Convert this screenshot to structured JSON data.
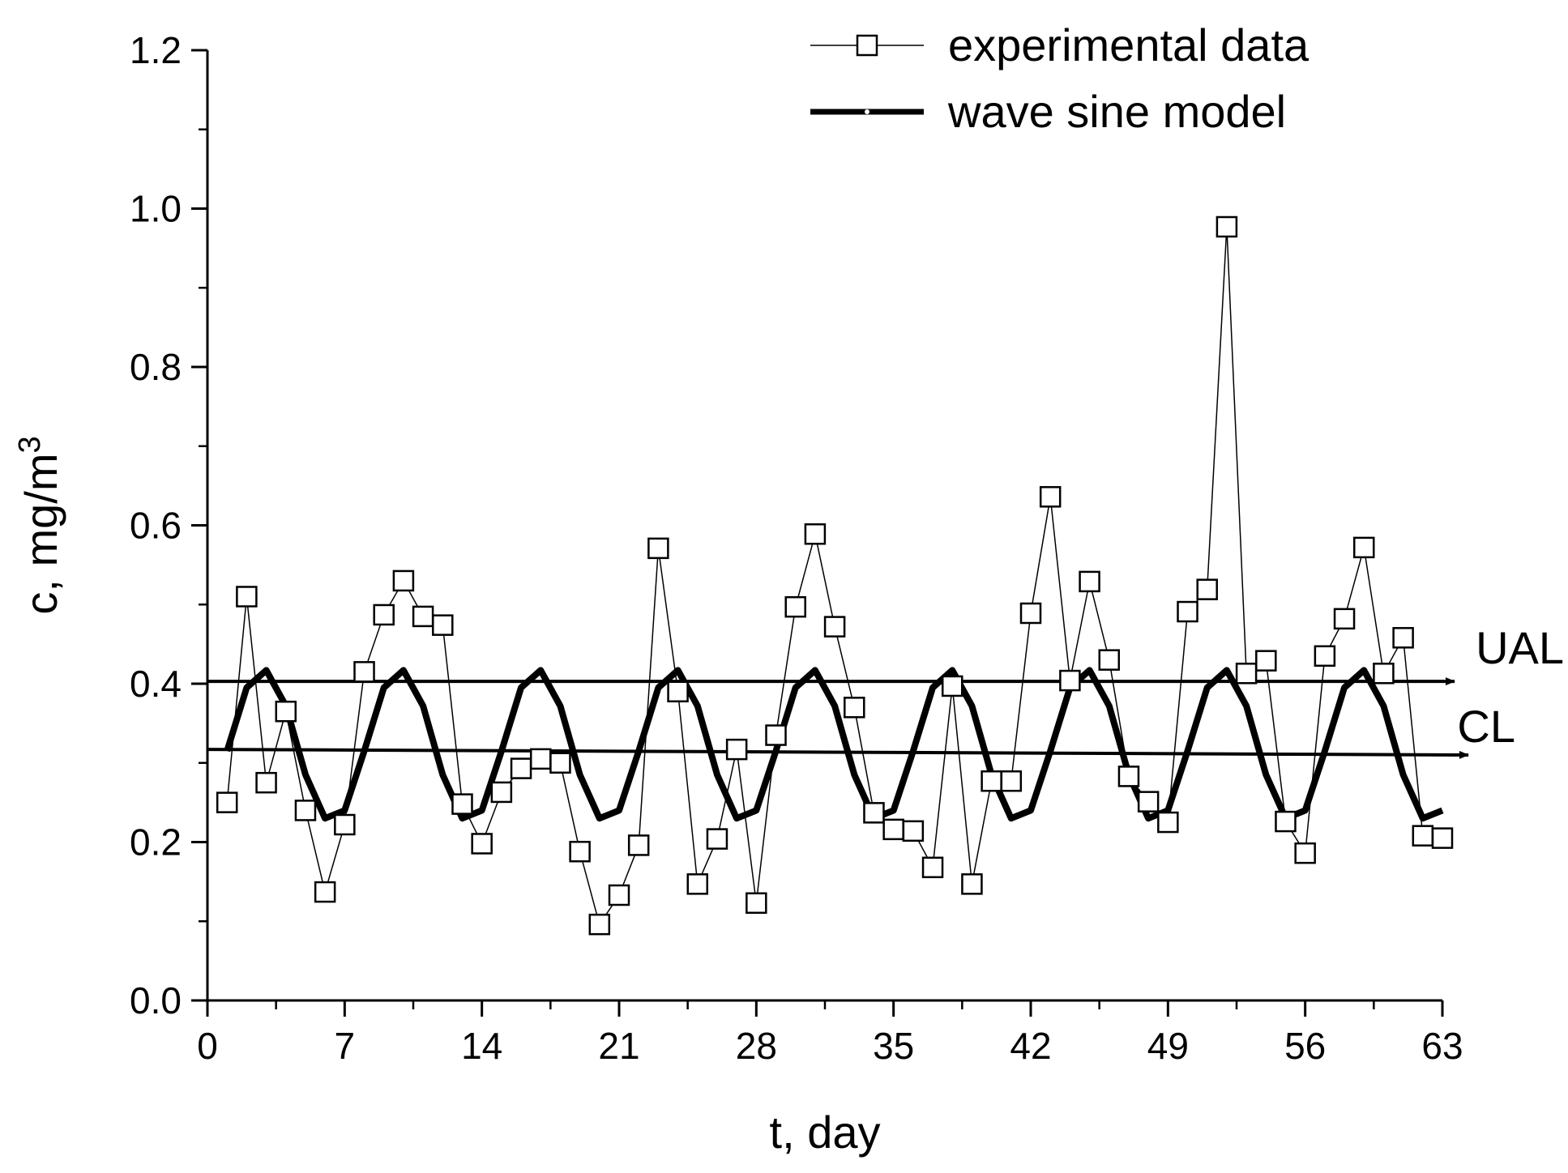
{
  "chart_data": {
    "type": "line",
    "title": "",
    "xlabel": "t, day",
    "ylabel_main": "c, mg/m",
    "ylabel_sup": "3",
    "xlim": [
      0,
      63
    ],
    "ylim": [
      0.0,
      1.2
    ],
    "x_ticks": [
      0,
      7,
      14,
      21,
      28,
      35,
      42,
      49,
      56,
      63
    ],
    "x_tick_labels": [
      "0",
      "7",
      "14",
      "21",
      "28",
      "35",
      "42",
      "49",
      "56",
      "63"
    ],
    "y_ticks": [
      0.0,
      0.2,
      0.4,
      0.6,
      0.8,
      1.0,
      1.2
    ],
    "y_tick_labels": [
      "0.0",
      "0.2",
      "0.4",
      "0.6",
      "0.8",
      "1.0",
      "1.2"
    ],
    "grid": false,
    "legend_position": "top-right",
    "series": [
      {
        "name": "experimental data",
        "style": "thin line with open square markers",
        "x": [
          1,
          2,
          3,
          4,
          5,
          6,
          7,
          8,
          9,
          10,
          11,
          12,
          13,
          14,
          15,
          16,
          17,
          18,
          19,
          20,
          21,
          22,
          23,
          24,
          25,
          26,
          27,
          28,
          29,
          30,
          31,
          32,
          33,
          34,
          35,
          36,
          37,
          38,
          39,
          40,
          41,
          42,
          43,
          44,
          45,
          46,
          47,
          48,
          49,
          50,
          51,
          52,
          53,
          54,
          55,
          56,
          57,
          58,
          59,
          60,
          61,
          62,
          63
        ],
        "values": [
          0.25,
          0.51,
          0.275,
          0.365,
          0.24,
          0.137,
          0.222,
          0.415,
          0.487,
          0.53,
          0.485,
          0.474,
          0.248,
          0.198,
          0.263,
          0.293,
          0.305,
          0.3,
          0.188,
          0.096,
          0.133,
          0.196,
          0.571,
          0.39,
          0.147,
          0.204,
          0.317,
          0.123,
          0.335,
          0.497,
          0.589,
          0.472,
          0.37,
          0.237,
          0.216,
          0.214,
          0.168,
          0.397,
          0.147,
          0.277,
          0.277,
          0.489,
          0.636,
          0.404,
          0.529,
          0.43,
          0.283,
          0.251,
          0.225,
          0.491,
          0.519,
          0.977,
          0.413,
          0.429,
          0.226,
          0.186,
          0.435,
          0.482,
          0.572,
          0.413,
          0.458,
          0.208,
          0.205
        ]
      },
      {
        "name": "wave sine model",
        "style": "thick line",
        "x": [
          1,
          2,
          3,
          4,
          5,
          6,
          7,
          8,
          9,
          10,
          11,
          12,
          13,
          14,
          15,
          16,
          17,
          18,
          19,
          20,
          21,
          22,
          23,
          24,
          25,
          26,
          27,
          28,
          29,
          30,
          31,
          32,
          33,
          34,
          35,
          36,
          37,
          38,
          39,
          40,
          41,
          42,
          43,
          44,
          45,
          46,
          47,
          48,
          49,
          50,
          51,
          52,
          53,
          54,
          55,
          56,
          57,
          58,
          59,
          60,
          61,
          62,
          63
        ],
        "values": [
          0.315,
          0.395,
          0.417,
          0.372,
          0.285,
          0.23,
          0.24,
          0.315,
          0.395,
          0.417,
          0.372,
          0.285,
          0.23,
          0.24,
          0.315,
          0.395,
          0.417,
          0.372,
          0.285,
          0.23,
          0.24,
          0.315,
          0.395,
          0.417,
          0.372,
          0.285,
          0.23,
          0.24,
          0.315,
          0.395,
          0.417,
          0.372,
          0.285,
          0.23,
          0.24,
          0.315,
          0.395,
          0.417,
          0.372,
          0.285,
          0.23,
          0.24,
          0.315,
          0.395,
          0.417,
          0.372,
          0.285,
          0.23,
          0.24,
          0.315,
          0.395,
          0.417,
          0.372,
          0.285,
          0.23,
          0.24,
          0.315,
          0.395,
          0.417,
          0.372,
          0.285,
          0.23,
          0.24
        ]
      }
    ],
    "reference_lines": [
      {
        "label": "UAL",
        "value_start": 0.403,
        "value_end": 0.403
      },
      {
        "label": "CL",
        "value_start": 0.317,
        "value_end": 0.31
      }
    ]
  }
}
